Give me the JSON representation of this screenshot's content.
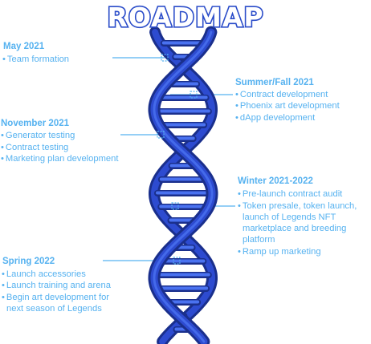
{
  "title": "ROADMAP",
  "colors": {
    "title_outline": "#2a4cc9",
    "text": "#56b2f0",
    "helix_dark": "#1a2f8c",
    "helix_mid": "#2d4bd0",
    "helix_light": "#4a72f0"
  },
  "milestones": [
    {
      "heading": "May 2021",
      "items": [
        "Team formation"
      ]
    },
    {
      "heading": "Summer/Fall 2021",
      "items": [
        "Contract development",
        "Phoenix art development",
        "dApp development"
      ]
    },
    {
      "heading": "November 2021",
      "items": [
        "Generator testing",
        "Contract testing",
        "Marketing plan development"
      ]
    },
    {
      "heading": "Winter 2021-2022",
      "items": [
        "Pre-launch contract audit",
        "Token presale, token launch,",
        "launch of Legends NFT",
        "marketplace and breeding",
        "platform",
        "Ramp up marketing"
      ]
    },
    {
      "heading": "Spring 2022",
      "items": [
        "Launch accessories",
        "Launch training and arena",
        "Begin art development for",
        "next season of Legends"
      ]
    }
  ]
}
